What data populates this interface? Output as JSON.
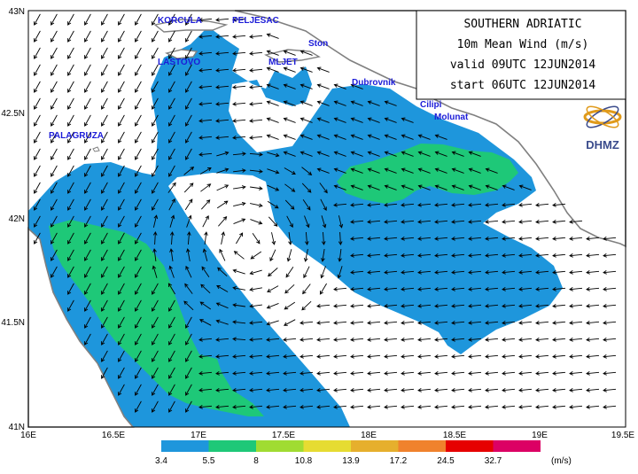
{
  "title": {
    "lines": [
      "SOUTHERN ADRIATIC",
      "10m Mean Wind (m/s)",
      "valid 09UTC 12JUN2014",
      "start 06UTC 12JUN2014"
    ]
  },
  "logo": {
    "text": "DHMZ"
  },
  "places": [
    {
      "name": "KORCULA"
    },
    {
      "name": "PELJESAC"
    },
    {
      "name": "Ston"
    },
    {
      "name": "LASTOVO"
    },
    {
      "name": "MLJET"
    },
    {
      "name": "Dubrovnik"
    },
    {
      "name": "Cilipi"
    },
    {
      "name": "Molunat"
    },
    {
      "name": "PALAGRUZA"
    }
  ],
  "axes": {
    "y_ticks": [
      "43N",
      "42.5N",
      "42N",
      "41.5N",
      "41N"
    ],
    "x_ticks": [
      "16E",
      "16.5E",
      "17E",
      "17.5E",
      "18E",
      "18.5E",
      "19E",
      "19.5E"
    ]
  },
  "legend": {
    "unit": "(m/s)",
    "levels": [
      "3.4",
      "5.5",
      "8",
      "10.8",
      "13.9",
      "17.2",
      "24.5",
      "32.7"
    ],
    "colors": [
      "#1e96dc",
      "#1ec878",
      "#a0dc32",
      "#e6dc32",
      "#e6af2d",
      "#f0822d",
      "#e60000",
      "#dc0064"
    ]
  },
  "colors": {
    "wind_3_4": "#1e96dc",
    "wind_5_5": "#1ec878",
    "coast": "#808080",
    "place_label": "#1c1cd8"
  },
  "chart_data": {
    "type": "heatmap",
    "title": "SOUTHERN ADRIATIC 10m Mean Wind (m/s)",
    "xlim": [
      16,
      19.5
    ],
    "ylim": [
      41,
      43
    ],
    "x_ticks": [
      16,
      16.5,
      17,
      17.5,
      18,
      18.5,
      19,
      19.5
    ],
    "y_ticks": [
      41,
      41.5,
      42,
      42.5,
      43
    ],
    "levels": [
      3.4,
      5.5,
      8,
      10.8,
      13.9,
      17.2,
      24.5,
      32.7
    ],
    "valid": "09UTC 12JUN2014",
    "start": "06UTC 12JUN2014"
  }
}
